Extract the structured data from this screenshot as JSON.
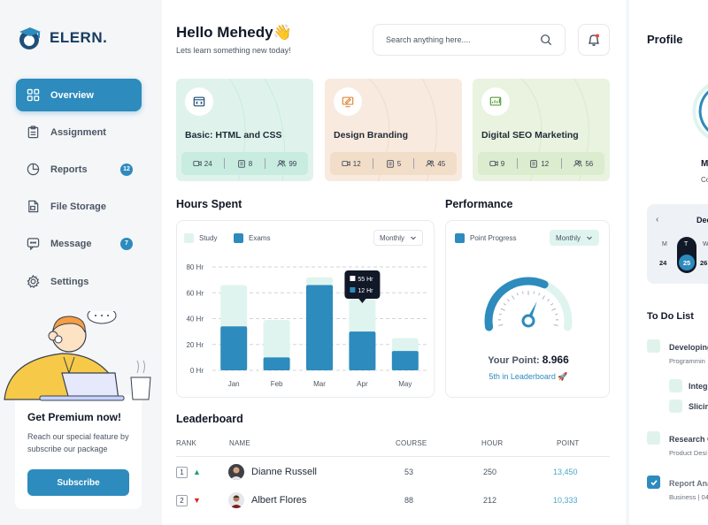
{
  "brand": {
    "name": "ELERN."
  },
  "sidebar": {
    "items": [
      {
        "label": "Overview",
        "icon": "grid-icon",
        "active": true
      },
      {
        "label": "Assignment",
        "icon": "clipboard-icon"
      },
      {
        "label": "Reports",
        "icon": "pie-chart-icon",
        "badge": "12"
      },
      {
        "label": "File Storage",
        "icon": "file-icon"
      },
      {
        "label": "Message",
        "icon": "chat-icon",
        "badge": "7"
      },
      {
        "label": "Settings",
        "icon": "gear-icon"
      }
    ],
    "premium": {
      "title": "Get Premium now!",
      "text": "Reach our special feature by subscribe our package",
      "button": "Subscribe"
    }
  },
  "header": {
    "greeting": "Hello Mehedy👋",
    "subtitle": "Lets learn something new today!",
    "search_placeholder": "Search anything here...."
  },
  "courses": [
    {
      "title": "Basic: HTML and CSS",
      "icon": "code-icon",
      "color": "#dff3ec",
      "stats": [
        "24",
        "8",
        "99"
      ]
    },
    {
      "title": "Design Branding",
      "icon": "design-icon",
      "color": "#f8eade",
      "stats": [
        "12",
        "5",
        "45"
      ]
    },
    {
      "title": "Digital SEO Marketing",
      "icon": "seo-icon",
      "color": "#e9f3df",
      "stats": [
        "9",
        "12",
        "56"
      ]
    }
  ],
  "hours": {
    "title": "Hours Spent",
    "legend": [
      "Study",
      "Exams"
    ],
    "dropdown": "Monthly",
    "tooltip": [
      "55 Hr",
      "12 Hr"
    ]
  },
  "chart_data": {
    "type": "bar",
    "stacked": true,
    "categories": [
      "Jan",
      "Feb",
      "Mar",
      "Apr",
      "May"
    ],
    "series": [
      {
        "name": "Exams",
        "values": [
          34,
          10,
          66,
          30,
          15
        ]
      },
      {
        "name": "Study",
        "values": [
          32,
          29,
          6,
          25,
          10
        ]
      }
    ],
    "y_ticks": [
      "0 Hr",
      "20 Hr",
      "40 Hr",
      "60 Hr",
      "80 Hr"
    ],
    "ylim": [
      0,
      80
    ],
    "colors": {
      "Study": "#dff4ef",
      "Exams": "#2d8bbd"
    }
  },
  "performance": {
    "title": "Performance",
    "legend": "Point Progress",
    "dropdown": "Monthly",
    "point_label": "Your Point:",
    "point_value": "8.966",
    "rank_text": "5th in Leaderboard",
    "gauge_fraction": 0.62
  },
  "leaderboard": {
    "title": "Leaderboard",
    "headers": [
      "RANK",
      "NAME",
      "COURSE",
      "HOUR",
      "POINT"
    ],
    "rows": [
      {
        "rank": "1",
        "trend": "up",
        "name": "Dianne Russell",
        "course": "53",
        "hour": "250",
        "point": "13,450"
      },
      {
        "rank": "2",
        "trend": "down",
        "name": "Albert Flores",
        "course": "88",
        "hour": "212",
        "point": "10,333"
      }
    ]
  },
  "profile": {
    "title": "Profile",
    "name_partial": "Me",
    "role_partial": "Co",
    "calendar": {
      "month_partial": "Dec",
      "days": [
        "M",
        "T",
        "W"
      ],
      "dates": [
        "24",
        "25",
        "26"
      ]
    }
  },
  "todo": {
    "title": "To Do List",
    "items": [
      {
        "text": "Developing",
        "sub": "Programmin"
      },
      {
        "text": "Integra",
        "sub": ""
      },
      {
        "text": "Slicing",
        "sub": ""
      },
      {
        "text": "Research O",
        "sub": "Product Desi"
      },
      {
        "text": "Report Ana",
        "sub": "Business | 04"
      }
    ]
  }
}
